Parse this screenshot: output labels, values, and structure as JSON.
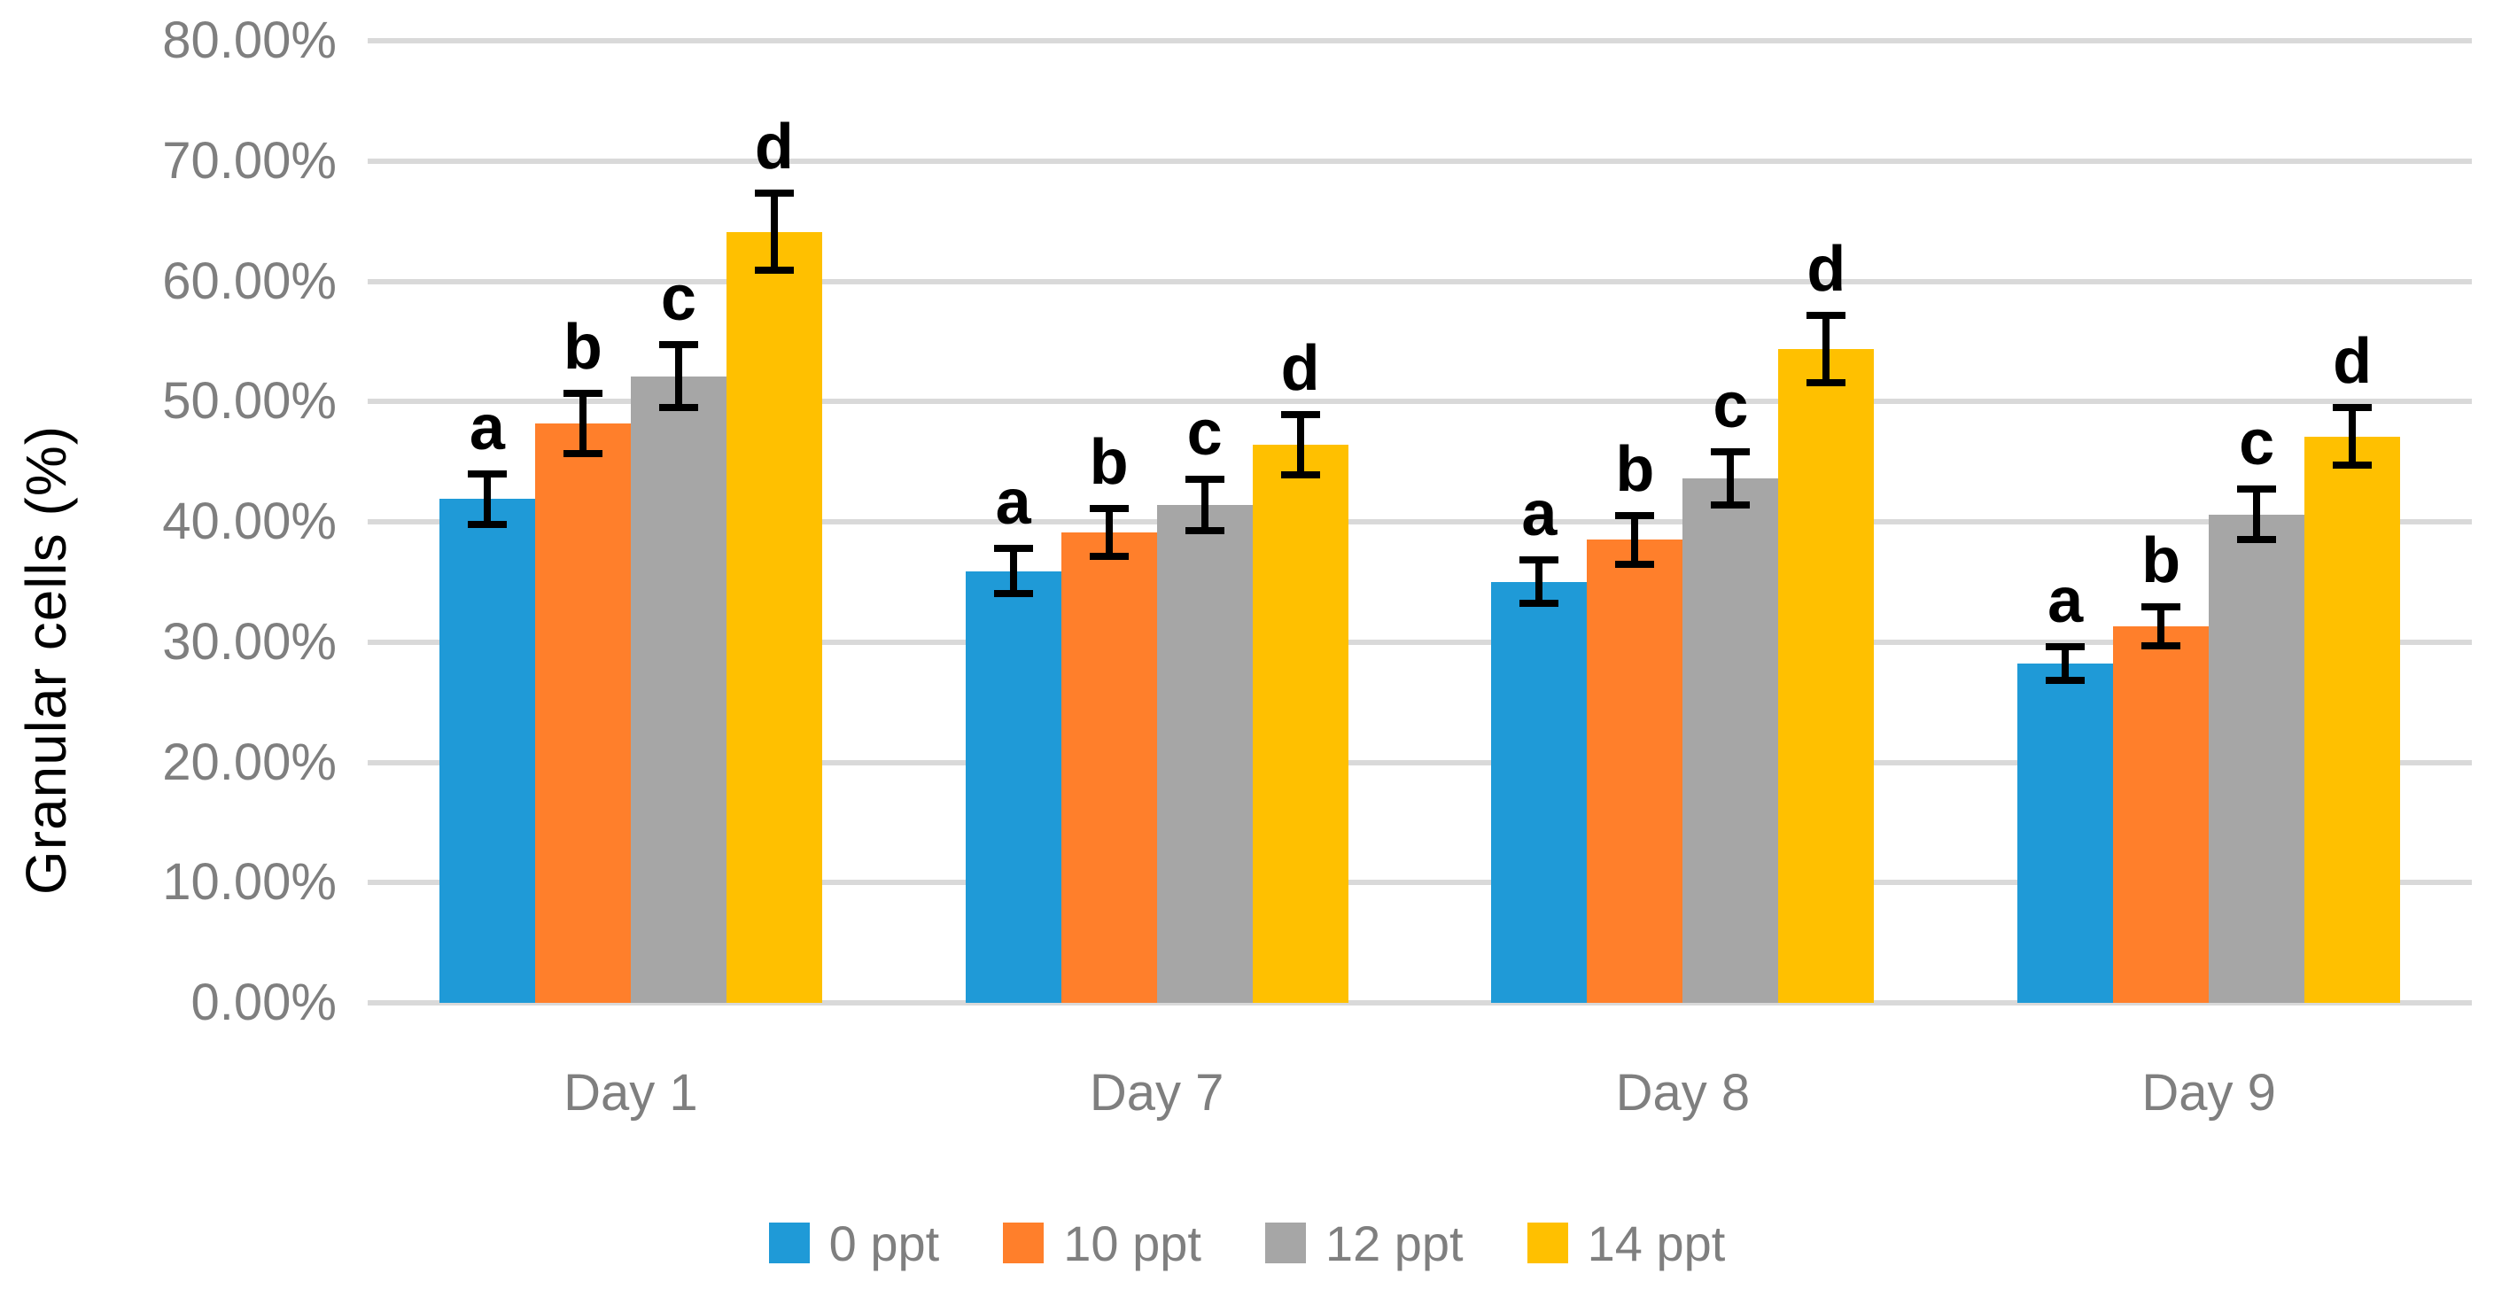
{
  "chart_data": {
    "type": "bar",
    "title": "",
    "ylabel": "Granular cells (%)",
    "xlabel": "",
    "categories": [
      "Day 1",
      "Day 7",
      "Day 8",
      "Day 9"
    ],
    "series": [
      {
        "name": "0 ppt",
        "color": "#1F9AD7",
        "values": [
          41.9,
          35.9,
          35.0,
          28.2
        ],
        "errors": [
          2.1,
          1.9,
          1.8,
          1.4
        ],
        "letters": [
          "a",
          "a",
          "a",
          "a"
        ]
      },
      {
        "name": "10 ppt",
        "color": "#FF7F2B",
        "values": [
          48.2,
          39.1,
          38.5,
          31.3
        ],
        "errors": [
          2.5,
          2.0,
          2.0,
          1.6
        ],
        "letters": [
          "b",
          "b",
          "b",
          "b"
        ]
      },
      {
        "name": "12 ppt",
        "color": "#A6A6A6",
        "values": [
          52.1,
          41.4,
          43.6,
          40.6
        ],
        "errors": [
          2.6,
          2.1,
          2.2,
          2.1
        ],
        "letters": [
          "c",
          "c",
          "c",
          "c"
        ]
      },
      {
        "name": "14 ppt",
        "color": "#FFC000",
        "values": [
          64.1,
          46.4,
          54.4,
          47.1
        ],
        "errors": [
          3.2,
          2.5,
          2.8,
          2.4
        ],
        "letters": [
          "d",
          "d",
          "d",
          "d"
        ]
      }
    ],
    "ylim": [
      0,
      80
    ],
    "y_tick_step": 10,
    "y_tick_labels": [
      "0.00%",
      "10.00%",
      "20.00%",
      "30.00%",
      "40.00%",
      "50.00%",
      "60.00%",
      "70.00%",
      "80.00%"
    ],
    "grid": true,
    "legend_position": "bottom",
    "error_bar_color": "#000000",
    "grid_color": "#D9D9D9",
    "tick_text_color": "#7F7F7F",
    "axis_title_color": "#000000"
  }
}
